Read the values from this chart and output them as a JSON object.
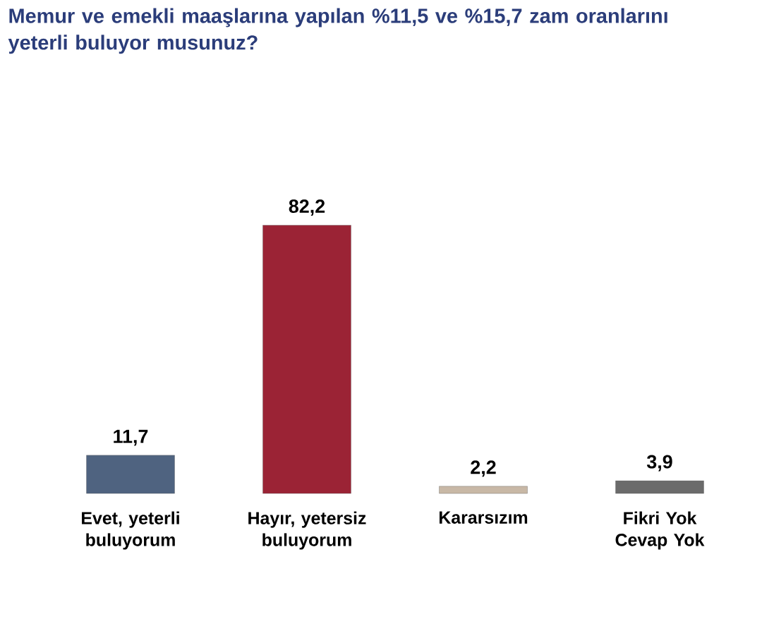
{
  "chart_data": {
    "type": "bar",
    "title": "Memur ve emekli maaşlarına yapılan %11,5 ve %15,7 zam oranlarını yeterli buluyor musunuz?",
    "categories": [
      "Evet, yeterli buluyorum",
      "Hayır, yetersiz buluyorum",
      "Kararsızım",
      "Fikri Yok Cevap Yok"
    ],
    "values": [
      11.7,
      82.2,
      2.2,
      3.9
    ],
    "colors": [
      "#4f6380",
      "#9b2335",
      "#c8b8a6",
      "#6b6b6b"
    ],
    "value_labels": [
      "11,7",
      "82,2",
      "2,2",
      "3,9"
    ]
  }
}
